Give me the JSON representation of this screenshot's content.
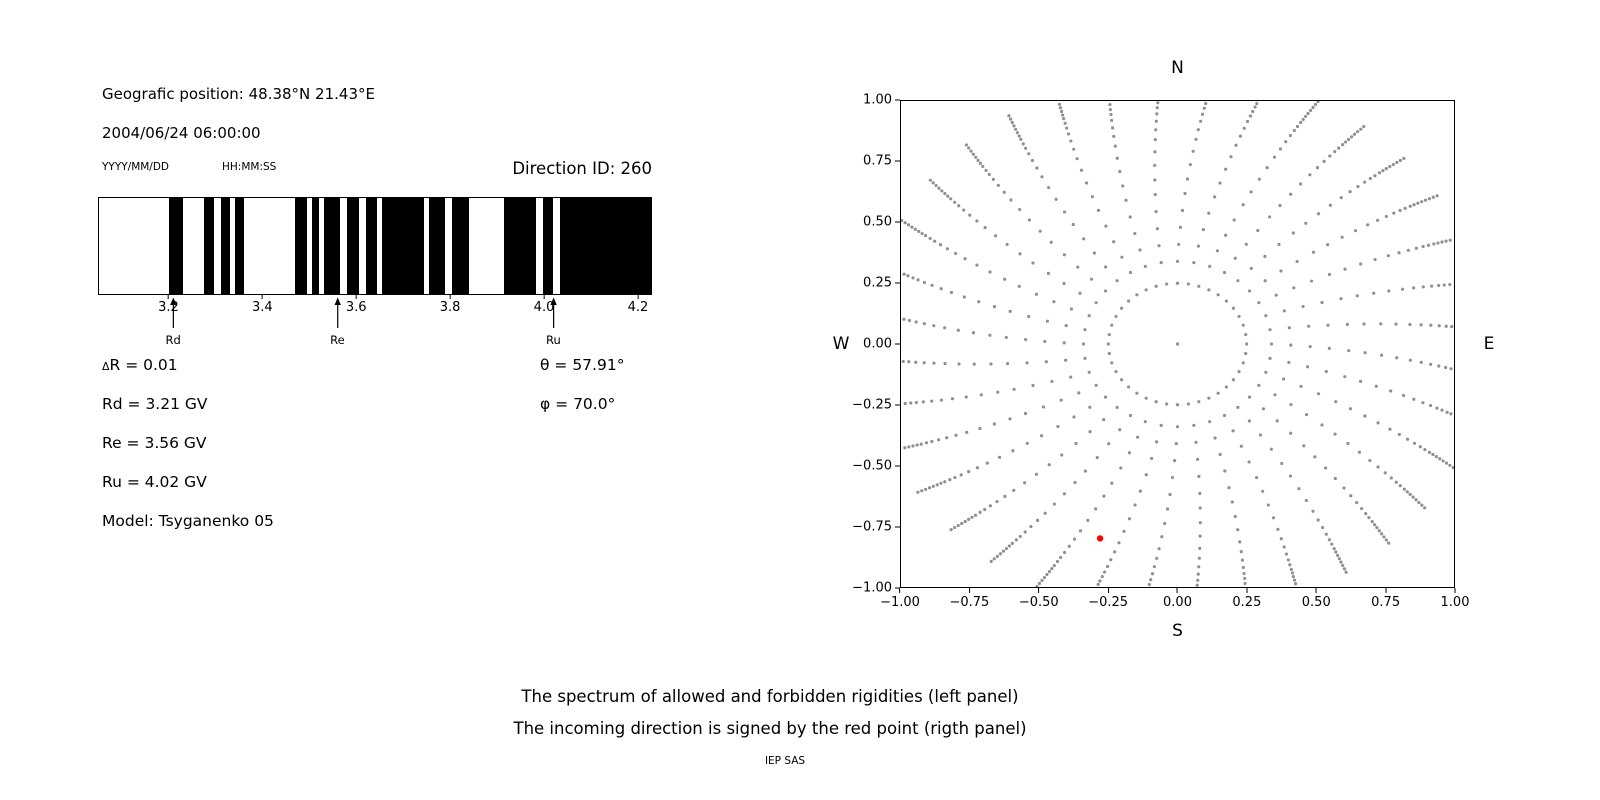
{
  "header": {
    "position": "Geografic position: 48.38°N 21.43°E",
    "datetime": "2004/06/24 06:00:00",
    "date_format": "YYYY/MM/DD",
    "time_format": "HH:MM:SS",
    "direction_id": "Direction ID: 260"
  },
  "info": {
    "delta_symbol": "Δ",
    "delta_rest": "R = 0.01",
    "rd": "Rd = 3.21 GV",
    "re": "Re = 3.56 GV",
    "ru": "Ru = 4.02 GV",
    "model": "Model: Tsyganenko 05",
    "theta": "θ = 57.91°",
    "phi": "φ = 70.0°"
  },
  "caption": {
    "line1": "The spectrum of allowed and forbidden rigidities (left panel)",
    "line2": "The incoming direction is signed by the red point (rigth panel)",
    "credit": "IEP SAS"
  },
  "chart_data": [
    {
      "type": "bar",
      "x_range": [
        3.05,
        4.23
      ],
      "x_ticks": [
        3.2,
        3.4,
        3.6,
        3.8,
        4.0,
        4.2
      ],
      "x_tick_labels": [
        "3.2",
        "3.4",
        "3.6",
        "3.8",
        "4.0",
        "4.2"
      ],
      "delta_r": 0.01,
      "bar_color": "#000000",
      "allowed_bands": [
        [
          3.2,
          3.23
        ],
        [
          3.275,
          3.295
        ],
        [
          3.31,
          3.33
        ],
        [
          3.34,
          3.36
        ],
        [
          3.47,
          3.495
        ],
        [
          3.505,
          3.52
        ],
        [
          3.53,
          3.565
        ],
        [
          3.58,
          3.605
        ],
        [
          3.62,
          3.645
        ],
        [
          3.655,
          3.745
        ],
        [
          3.755,
          3.79
        ],
        [
          3.805,
          3.84
        ],
        [
          3.915,
          3.985
        ],
        [
          4.0,
          4.02
        ],
        [
          4.035,
          4.23
        ]
      ],
      "markers": [
        {
          "label": "Rd",
          "value": 3.21
        },
        {
          "label": "Re",
          "value": 3.56
        },
        {
          "label": "Ru",
          "value": 4.02
        }
      ]
    },
    {
      "type": "scatter",
      "xlim": [
        -1.0,
        1.0
      ],
      "ylim": [
        -1.0,
        1.0
      ],
      "tick_values": [
        -1.0,
        -0.75,
        -0.5,
        -0.25,
        0.0,
        0.25,
        0.5,
        0.75,
        1.0
      ],
      "tick_labels": [
        "−1.00",
        "−0.75",
        "−0.50",
        "−0.25",
        "0.00",
        "0.25",
        "0.50",
        "0.75",
        "1.00"
      ],
      "compass": {
        "top": "N",
        "bottom": "S",
        "left": "W",
        "right": "E"
      },
      "dot_color": "#909090",
      "dot_radius": 1.6,
      "center_dot": [
        0,
        0
      ],
      "inner_ring": {
        "radius": 0.25,
        "count": 40
      },
      "spokes": {
        "count": 36,
        "curl_deg": 7,
        "radii": [
          0.34,
          0.41,
          0.48,
          0.55,
          0.62,
          0.68,
          0.74,
          0.795,
          0.845,
          0.885,
          0.92,
          0.95,
          0.975,
          0.995,
          1.015,
          1.03,
          1.045,
          1.06,
          1.075,
          1.09,
          1.105,
          1.12
        ]
      },
      "red_point": {
        "x": -0.28,
        "y": -0.8,
        "color": "#ff0000",
        "radius": 3.2
      }
    }
  ]
}
